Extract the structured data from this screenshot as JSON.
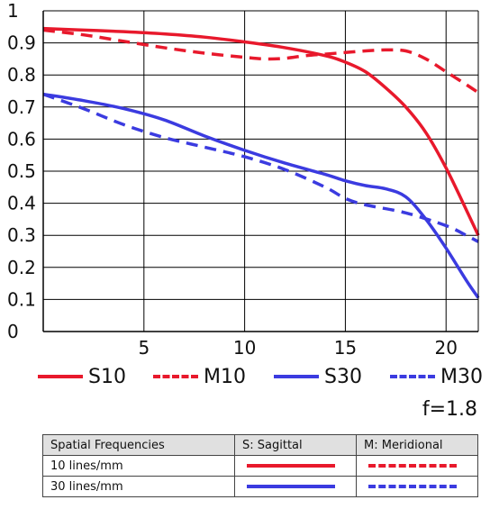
{
  "chart_data": {
    "type": "line",
    "title": "",
    "xlabel": "",
    "ylabel": "",
    "xlim": [
      0,
      21.6
    ],
    "ylim": [
      0,
      1
    ],
    "xticks": [
      5,
      10,
      15,
      20
    ],
    "yticks": [
      0,
      0.1,
      0.2,
      0.3,
      0.4,
      0.5,
      0.6,
      0.7,
      0.8,
      0.9,
      1
    ],
    "ytick_labels": [
      "0",
      "0.1",
      "0.2",
      "0.3",
      "0.4",
      "0.5",
      "0.6",
      "0.7",
      "0.8",
      "0.9",
      "1"
    ],
    "grid": true,
    "legend_position": "bottom",
    "series": [
      {
        "name": "S10",
        "color": "#e8192c",
        "dash": "solid",
        "x": [
          0,
          2,
          4,
          6,
          8,
          10,
          12,
          14,
          15,
          16,
          17,
          18,
          19,
          20,
          21,
          21.6
        ],
        "y": [
          0.945,
          0.94,
          0.935,
          0.928,
          0.918,
          0.903,
          0.885,
          0.86,
          0.84,
          0.81,
          0.76,
          0.7,
          0.62,
          0.51,
          0.38,
          0.3
        ]
      },
      {
        "name": "M10",
        "color": "#e8192c",
        "dash": "dashed",
        "x": [
          0,
          2,
          4,
          6,
          8,
          10,
          11,
          12,
          13,
          14,
          15,
          16,
          17,
          18,
          19,
          20,
          21,
          21.6
        ],
        "y": [
          0.94,
          0.925,
          0.905,
          0.885,
          0.868,
          0.855,
          0.85,
          0.852,
          0.86,
          0.865,
          0.87,
          0.875,
          0.878,
          0.875,
          0.85,
          0.81,
          0.77,
          0.745
        ]
      },
      {
        "name": "S30",
        "color": "#3b3be0",
        "dash": "solid",
        "x": [
          0,
          2,
          4,
          6,
          8,
          10,
          12,
          14,
          15,
          16,
          17,
          18,
          19,
          20,
          21,
          21.6
        ],
        "y": [
          0.74,
          0.72,
          0.695,
          0.66,
          0.61,
          0.565,
          0.525,
          0.49,
          0.47,
          0.455,
          0.445,
          0.42,
          0.35,
          0.26,
          0.16,
          0.105
        ]
      },
      {
        "name": "M30",
        "color": "#3b3be0",
        "dash": "dashed",
        "x": [
          0,
          2,
          4,
          6,
          8,
          10,
          12,
          14,
          15,
          16,
          18,
          20,
          21,
          21.6
        ],
        "y": [
          0.74,
          0.695,
          0.645,
          0.605,
          0.575,
          0.545,
          0.505,
          0.45,
          0.415,
          0.395,
          0.37,
          0.33,
          0.3,
          0.28
        ]
      }
    ]
  },
  "aperture": "f=1.8",
  "table": {
    "headers": [
      "Spatial Frequencies",
      "S: Sagittal",
      "M: Meridional"
    ],
    "rows": [
      {
        "label": "10 lines/mm",
        "color": "#e8192c"
      },
      {
        "label": "30 lines/mm",
        "color": "#3b3be0"
      }
    ]
  }
}
